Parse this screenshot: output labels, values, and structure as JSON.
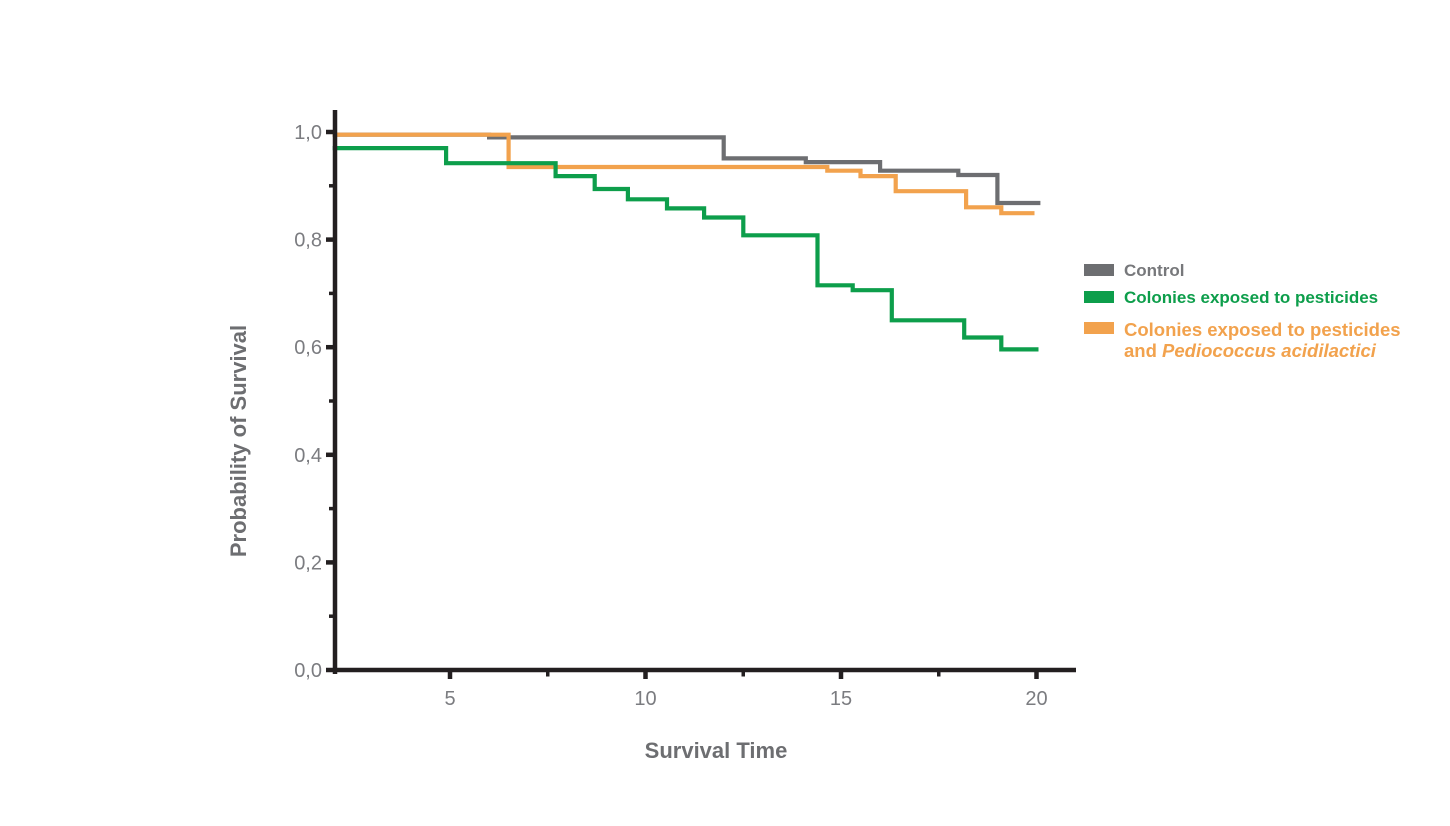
{
  "chart_data": {
    "type": "line",
    "subtype": "kaplan-meier-step",
    "title": "",
    "xlabel": "Survival Time",
    "ylabel": "Probability of Survival",
    "xlim": [
      2.0,
      21.0
    ],
    "ylim": [
      0,
      1.04
    ],
    "grid": false,
    "legend_position": "right",
    "x_ticks": {
      "major": [
        {
          "value": 5,
          "label": "5"
        },
        {
          "value": 10,
          "label": "10"
        },
        {
          "value": 15,
          "label": "15"
        },
        {
          "value": 20,
          "label": "20"
        }
      ],
      "minor": [
        7.5,
        12.5,
        17.5
      ]
    },
    "y_ticks": {
      "major": [
        {
          "value": 0.0,
          "label": "0,0"
        },
        {
          "value": 0.2,
          "label": "0,2"
        },
        {
          "value": 0.4,
          "label": "0,4"
        },
        {
          "value": 0.6,
          "label": "0,6"
        },
        {
          "value": 0.8,
          "label": "0,8"
        },
        {
          "value": 1.0,
          "label": "1,0"
        }
      ],
      "minor": [
        0.1,
        0.3,
        0.5,
        0.7,
        0.9
      ]
    },
    "series": [
      {
        "key": "control",
        "name": "Control",
        "color": "#6d6e71",
        "points": [
          [
            2.0,
            0.995
          ],
          [
            6.0,
            0.99
          ],
          [
            12.0,
            0.951
          ],
          [
            14.1,
            0.944
          ],
          [
            16.0,
            0.928
          ],
          [
            18.0,
            0.92
          ],
          [
            19.0,
            0.868
          ]
        ],
        "end_x": 20.1
      },
      {
        "key": "pesticides",
        "name": "Colonies exposed to pesticides",
        "color": "#0d9e4b",
        "points": [
          [
            2.0,
            0.97
          ],
          [
            4.9,
            0.942
          ],
          [
            7.7,
            0.918
          ],
          [
            8.7,
            0.894
          ],
          [
            9.55,
            0.875
          ],
          [
            10.55,
            0.858
          ],
          [
            11.5,
            0.841
          ],
          [
            12.5,
            0.808
          ],
          [
            14.4,
            0.715
          ],
          [
            15.3,
            0.706
          ],
          [
            16.3,
            0.65
          ],
          [
            18.15,
            0.618
          ],
          [
            19.1,
            0.596
          ]
        ],
        "end_x": 20.05
      },
      {
        "key": "pesticides-probiotic",
        "name": "Colonies exposed to pesticides and Pediococcus acidilactici",
        "color": "#f2a24d",
        "points": [
          [
            2.0,
            0.995
          ],
          [
            6.5,
            0.935
          ],
          [
            14.65,
            0.928
          ],
          [
            15.5,
            0.918
          ],
          [
            16.4,
            0.89
          ],
          [
            18.2,
            0.86
          ],
          [
            19.1,
            0.849
          ]
        ],
        "end_x": 19.95
      }
    ]
  },
  "axes": {
    "x_title": "Survival Time",
    "y_title": "Probability of Survival"
  },
  "legend": {
    "items": [
      {
        "key": "control",
        "label": "Control",
        "color": "#6d6e71",
        "text_color": "#77787b"
      },
      {
        "key": "pesticides",
        "label": "Colonies exposed to pesticides",
        "color": "#0d9e4b",
        "text_color": "#0d9e4b"
      },
      {
        "key": "pesticides-probiotic",
        "label_line1": "Colonies exposed to pesticides",
        "label_line2_prefix": "and ",
        "label_line2_italic": "Pediococcus acidilactici",
        "color": "#f2a24d",
        "text_color": "#f2a24d"
      }
    ]
  },
  "colors": {
    "background": "#ffffff",
    "axis": "#231f20",
    "tick_label": "#7b7c80",
    "axis_title": "#6d6e71"
  }
}
